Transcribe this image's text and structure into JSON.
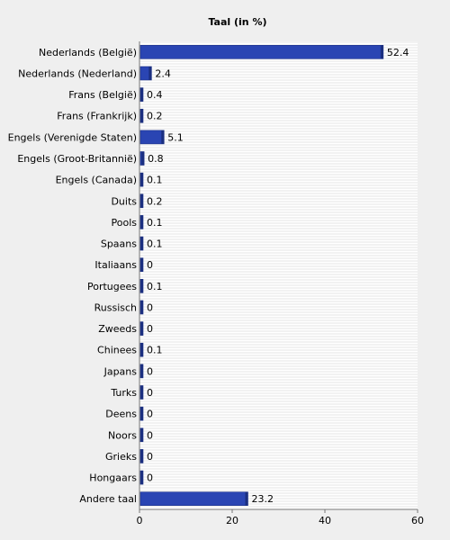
{
  "chart_data": {
    "type": "bar",
    "orientation": "horizontal",
    "title": "Taal (in %)",
    "xlabel": "",
    "ylabel": "",
    "xlim": [
      0,
      60
    ],
    "x_ticks": [
      "0",
      "20",
      "40",
      "60"
    ],
    "grid": "horizontal-stripes",
    "bar_color": "#2a45b3",
    "categories": [
      "Nederlands (België)",
      "Nederlands (Nederland)",
      "Frans (België)",
      "Frans (Frankrijk)",
      "Engels (Verenigde Staten)",
      "Engels (Groot-Britannië)",
      "Engels (Canada)",
      "Duits",
      "Pools",
      "Spaans",
      "Italiaans",
      "Portugees",
      "Russisch",
      "Zweeds",
      "Chinees",
      "Japans",
      "Turks",
      "Deens",
      "Noors",
      "Grieks",
      "Hongaars",
      "Andere taal"
    ],
    "values": [
      52.4,
      2.4,
      0.4,
      0.2,
      5.1,
      0.8,
      0.1,
      0.2,
      0.1,
      0.1,
      0,
      0.1,
      0,
      0,
      0.1,
      0,
      0,
      0,
      0,
      0,
      0,
      23.2
    ],
    "value_labels": [
      "52.4",
      "2.4",
      "0.4",
      "0.2",
      "5.1",
      "0.8",
      "0.1",
      "0.2",
      "0.1",
      "0.1",
      "0",
      "0.1",
      "0",
      "0",
      "0.1",
      "0",
      "0",
      "0",
      "0",
      "0",
      "0",
      "23.2"
    ]
  }
}
